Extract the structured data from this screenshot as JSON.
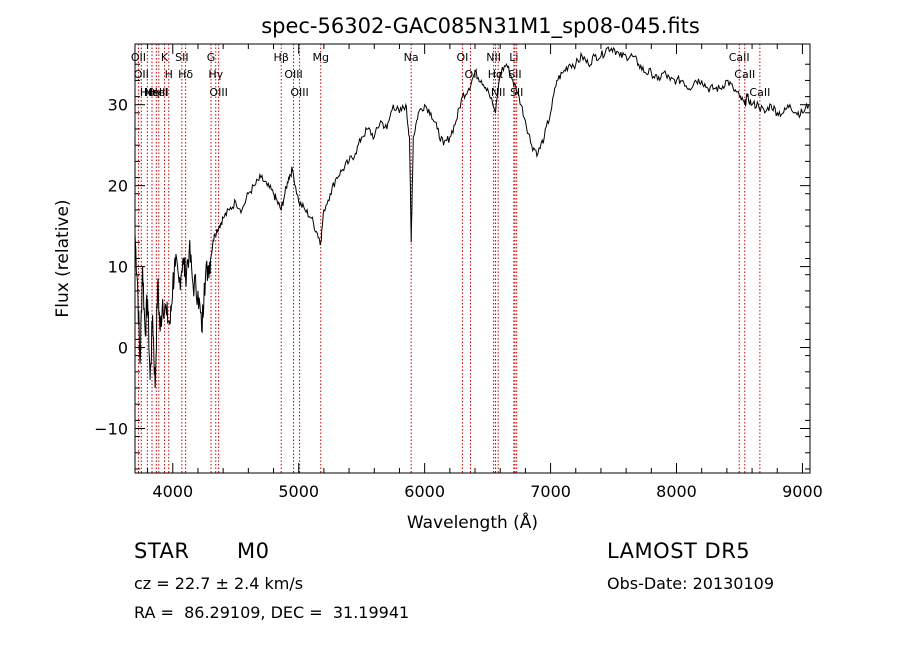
{
  "chart_data": {
    "type": "line",
    "title": "spec-56302-GAC085N31M1_sp08-045.fits",
    "xlabel": "Wavelength (Å)",
    "ylabel": "Flux (relative)",
    "xlim": [
      3700,
      9060
    ],
    "ylim": [
      -15.5,
      37.5
    ],
    "x_ticks": [
      4000,
      5000,
      6000,
      7000,
      8000,
      9000
    ],
    "y_ticks": [
      -10,
      0,
      10,
      20,
      30
    ],
    "x_tick_labels": [
      "4000",
      "5000",
      "6000",
      "7000",
      "8000",
      "9000"
    ],
    "y_tick_labels": [
      "−10",
      "0",
      "10",
      "20",
      "30"
    ],
    "line_color": "#000000",
    "marker_color": "#cc0000",
    "series": [
      {
        "x": [
          3700,
          3720,
          3740,
          3760,
          3780,
          3800,
          3820,
          3840,
          3860,
          3880,
          3900,
          3920,
          3950,
          3980,
          4000,
          4020,
          4050,
          4080,
          4100,
          4130,
          4160,
          4200,
          4230,
          4250,
          4280,
          4300,
          4330,
          4370,
          4400,
          4450,
          4500,
          4550,
          4600,
          4650,
          4700,
          4750,
          4800,
          4830,
          4861,
          4890,
          4920,
          4950,
          5000,
          5050,
          5100,
          5150,
          5175,
          5200,
          5250,
          5300,
          5350,
          5400,
          5450,
          5500,
          5550,
          5600,
          5650,
          5700,
          5750,
          5800,
          5850,
          5880,
          5893,
          5910,
          5950,
          6000,
          6050,
          6100,
          6150,
          6200,
          6250,
          6300,
          6350,
          6400,
          6450,
          6500,
          6563,
          6600,
          6650,
          6700,
          6750,
          6800,
          6850,
          6900,
          6950,
          7000,
          7050,
          7100,
          7150,
          7200,
          7250,
          7300,
          7350,
          7400,
          7450,
          7500,
          7550,
          7600,
          7650,
          7700,
          7750,
          7800,
          7850,
          7900,
          7950,
          8000,
          8050,
          8100,
          8150,
          8200,
          8250,
          8300,
          8350,
          8400,
          8450,
          8500,
          8542,
          8560,
          8600,
          8650,
          8700,
          8750,
          8800,
          8850,
          8900,
          8950,
          9000,
          9050
        ],
        "y": [
          14,
          8,
          -2,
          10,
          2,
          6,
          -4,
          4,
          -5,
          8,
          2,
          6,
          4,
          3,
          8,
          10,
          8,
          11,
          9,
          12,
          8,
          7,
          2,
          8,
          10,
          11,
          14,
          15,
          16,
          17,
          18,
          17,
          19,
          20,
          21,
          20,
          19,
          18,
          17,
          19,
          21,
          22,
          18,
          17,
          16,
          14,
          13,
          17,
          19,
          21,
          22,
          23,
          24,
          26,
          27,
          26,
          28,
          27,
          30,
          29,
          30,
          26,
          13,
          26,
          29,
          30,
          29,
          27,
          25,
          26,
          28,
          31,
          32,
          34,
          33,
          32,
          29,
          34,
          35,
          33,
          31,
          28,
          25,
          24,
          26,
          29,
          33,
          34,
          35,
          35,
          36,
          35,
          36,
          36,
          37,
          37,
          36,
          36,
          36,
          35,
          34,
          34,
          33,
          34,
          33,
          33,
          33,
          32,
          33,
          33,
          32,
          32,
          32,
          33,
          32,
          31,
          30,
          31,
          30,
          30,
          29,
          30,
          29,
          29,
          30,
          29,
          29,
          30
        ]
      }
    ],
    "line_markers": [
      {
        "x": 3727,
        "labels": [
          "OII"
        ]
      },
      {
        "x": 3750,
        "labels": [
          "OII"
        ]
      },
      {
        "x": 3798,
        "labels": [
          "Hθ"
        ]
      },
      {
        "x": 3835,
        "labels": [
          "Hη"
        ]
      },
      {
        "x": 3869,
        "labels": [
          "NeIII"
        ]
      },
      {
        "x": 3889,
        "labels": [
          "HeI"
        ]
      },
      {
        "x": 3934,
        "labels": [
          "K"
        ]
      },
      {
        "x": 3968,
        "labels": [
          "H"
        ]
      },
      {
        "x": 4072,
        "labels": [
          "SII"
        ]
      },
      {
        "x": 4102,
        "labels": [
          "Hδ"
        ]
      },
      {
        "x": 4304,
        "labels": [
          "G"
        ]
      },
      {
        "x": 4341,
        "labels": [
          "Hγ"
        ]
      },
      {
        "x": 4364,
        "labels": [
          "OIII"
        ]
      },
      {
        "x": 4861,
        "labels": [
          "Hβ"
        ]
      },
      {
        "x": 4959,
        "labels": [
          "OIII"
        ]
      },
      {
        "x": 5007,
        "labels": [
          "OIII"
        ]
      },
      {
        "x": 5175,
        "labels": [
          "Mg"
        ]
      },
      {
        "x": 5893,
        "labels": [
          "Na"
        ]
      },
      {
        "x": 6300,
        "labels": [
          "OI"
        ]
      },
      {
        "x": 6364,
        "labels": [
          "OI"
        ]
      },
      {
        "x": 6548,
        "labels": [
          "NII"
        ]
      },
      {
        "x": 6563,
        "labels": [
          "Hα"
        ]
      },
      {
        "x": 6584,
        "labels": [
          "NII"
        ]
      },
      {
        "x": 6708,
        "labels": [
          "Li"
        ]
      },
      {
        "x": 6717,
        "labels": [
          "SII"
        ]
      },
      {
        "x": 6731,
        "labels": [
          "SII"
        ]
      },
      {
        "x": 8498,
        "labels": [
          "CaII"
        ]
      },
      {
        "x": 8542,
        "labels": [
          "CaII"
        ]
      },
      {
        "x": 8662,
        "labels": [
          "CaII"
        ]
      }
    ]
  },
  "info": {
    "object_type": "STAR",
    "subclass": "M0",
    "survey": "LAMOST DR5",
    "cz": "cz = 22.7 ± 2.4 km/s",
    "obs_date": "Obs-Date: 20130109",
    "coords": "RA =  86.29109, DEC =  31.19941"
  }
}
